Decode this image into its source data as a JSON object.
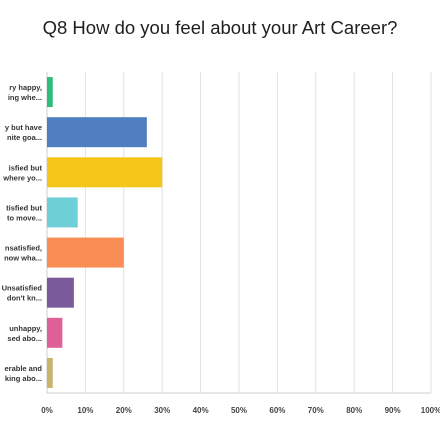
{
  "chart_data": {
    "type": "bar",
    "orientation": "horizontal",
    "title": "Q8 How do you feel about your Art Career?",
    "categories": [
      [
        "ry happy,",
        "ing whe..."
      ],
      [
        "y but have",
        "nite goa..."
      ],
      [
        "isfied but",
        "where yo..."
      ],
      [
        "tisfied but",
        "to move..."
      ],
      [
        "nsatisfied,",
        "now wha..."
      ],
      [
        "Unsatisfied",
        "don't kn..."
      ],
      [
        "unhappy,",
        "sed abo..."
      ],
      [
        "erable and",
        "king abo..."
      ]
    ],
    "values": [
      1.5,
      26,
      30,
      8,
      20,
      7,
      4,
      1.5
    ],
    "colors": [
      "#2dbd7e",
      "#4f7fbf",
      "#f5c518",
      "#6fcfd6",
      "#f98e55",
      "#7b5b9b",
      "#e0609a",
      "#c7b46b"
    ],
    "xlim": [
      0,
      100
    ],
    "xticks": [
      "0%",
      "10%",
      "20%",
      "30%",
      "40%",
      "50%",
      "60%",
      "70%",
      "80%",
      "90%",
      "100%"
    ],
    "grid": true
  }
}
